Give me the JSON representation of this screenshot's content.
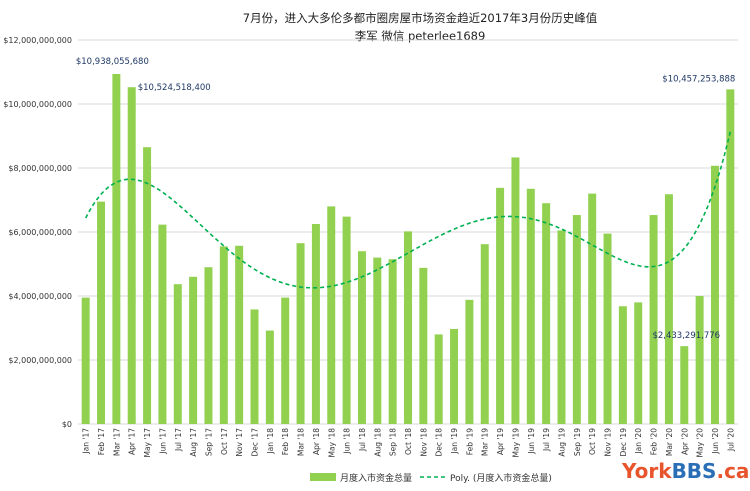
{
  "chart_data": {
    "type": "bar",
    "title": "7月份，进入大多伦多都市圈房屋市场资金趋近2017年3月份历史峰值",
    "subtitle": "李军 微信 peterlee1689",
    "xlabel": "",
    "ylabel": "",
    "ylim": [
      0,
      12000000000
    ],
    "yticks": [
      "$0",
      "$2,000,000,000",
      "$4,000,000,000",
      "$6,000,000,000",
      "$8,000,000,000",
      "$10,000,000,000",
      "$12,000,000,000"
    ],
    "grid": true,
    "legend_position": "bottom",
    "categories": [
      "Jan '17",
      "Feb '17",
      "Mar '17",
      "Apr '17",
      "May '17",
      "Jun '17",
      "Jul '17",
      "Aug '17",
      "Sep '17",
      "Oct '17",
      "Nov '17",
      "Dec '17",
      "Jan '18",
      "Feb '18",
      "Mar '18",
      "Apr '18",
      "May '18",
      "Jun '18",
      "Jul '18",
      "Aug '18",
      "Sep '18",
      "Oct '18",
      "Nov '18",
      "Dec '18",
      "Jan '19",
      "Feb '19",
      "Mar '19",
      "Apr '19",
      "May '19",
      "Jun '19",
      "Jul '19",
      "Aug '19",
      "Sep '19",
      "Oct '19",
      "Nov '19",
      "Dec '19",
      "Jan '20",
      "Feb '20",
      "Mar '20",
      "Apr '20",
      "May '20",
      "Jun '20",
      "Jul '20"
    ],
    "series": [
      {
        "name": "月度入市资金总量",
        "type": "bar",
        "color": "#92d050",
        "values": [
          3950000000,
          6950000000,
          10938055680,
          10524518400,
          8650000000,
          6230000000,
          4370000000,
          4600000000,
          4900000000,
          5550000000,
          5570000000,
          3580000000,
          2920000000,
          3950000000,
          5650000000,
          6250000000,
          6800000000,
          6480000000,
          5400000000,
          5200000000,
          5150000000,
          6020000000,
          4880000000,
          2800000000,
          2970000000,
          3880000000,
          5620000000,
          7380000000,
          8330000000,
          7350000000,
          6900000000,
          6050000000,
          6530000000,
          7200000000,
          5950000000,
          3680000000,
          3800000000,
          6530000000,
          7180000000,
          2433291776,
          4000000000,
          8070000000,
          10457253888
        ]
      },
      {
        "name": "Poly. (月度入市资金总量)",
        "type": "trendline",
        "color": "#00b050",
        "style": "dashed"
      }
    ],
    "annotations": [
      {
        "text": "$10,938,055,680",
        "index": 2
      },
      {
        "text": "$10,524,518,400",
        "index": 3
      },
      {
        "text": "$2,433,291,776",
        "index": 39
      },
      {
        "text": "$10,457,253,888",
        "index": 42
      }
    ]
  },
  "watermark": {
    "part1": "York",
    "part2": "BBS",
    "part3": ".ca"
  }
}
